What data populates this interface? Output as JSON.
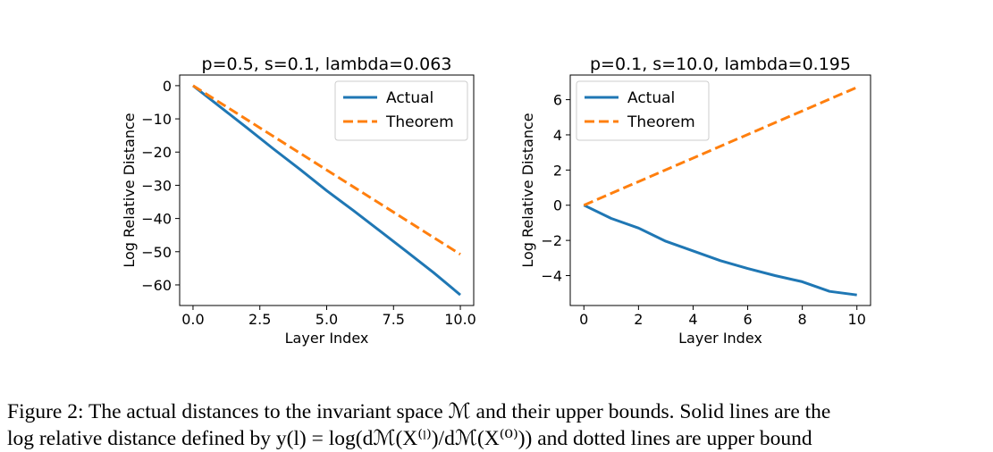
{
  "chart_data": [
    {
      "type": "line",
      "title": "p=0.5, s=0.1, lambda=0.063",
      "xlabel": "Layer Index",
      "ylabel": "Log Relative Distance",
      "xlim": [
        -0.5,
        10.5
      ],
      "ylim": [
        -66.2,
        3.2
      ],
      "xticks": [
        0.0,
        2.5,
        5.0,
        7.5,
        10.0
      ],
      "xtick_labels": [
        "0.0",
        "2.5",
        "5.0",
        "7.5",
        "10.0"
      ],
      "yticks": [
        0,
        -10,
        -20,
        -30,
        -40,
        -50,
        -60
      ],
      "ytick_labels": [
        "0",
        "−10",
        "−20",
        "−30",
        "−40",
        "−50",
        "−60"
      ],
      "grid": false,
      "legend": "upper right",
      "series": [
        {
          "name": "Actual",
          "color": "#1f77b4",
          "style": "solid",
          "x": [
            0,
            1,
            2,
            3,
            4,
            5,
            6,
            7,
            8,
            9,
            10
          ],
          "y": [
            0,
            -6.3,
            -12.6,
            -19.0,
            -25.2,
            -31.6,
            -37.6,
            -43.8,
            -50.0,
            -56.3,
            -63.0
          ]
        },
        {
          "name": "Theorem",
          "color": "#ff7f0e",
          "style": "dashed",
          "x": [
            0,
            10
          ],
          "y": [
            0,
            -50.8
          ]
        }
      ]
    },
    {
      "type": "line",
      "title": "p=0.1, s=10.0, lambda=0.195",
      "xlabel": "Layer Index",
      "ylabel": "Log Relative Distance",
      "xlim": [
        -0.5,
        10.5
      ],
      "ylim": [
        -5.7,
        7.4
      ],
      "xticks": [
        0,
        2,
        4,
        6,
        8,
        10
      ],
      "xtick_labels": [
        "0",
        "2",
        "4",
        "6",
        "8",
        "10"
      ],
      "yticks": [
        6,
        4,
        2,
        0,
        -2,
        -4
      ],
      "ytick_labels": [
        "6",
        "4",
        "2",
        "0",
        "−2",
        "−4"
      ],
      "grid": false,
      "legend": "upper left",
      "series": [
        {
          "name": "Actual",
          "color": "#1f77b4",
          "style": "solid",
          "x": [
            0,
            1,
            2,
            3,
            4,
            5,
            6,
            7,
            8,
            9,
            10
          ],
          "y": [
            0,
            -0.75,
            -1.3,
            -2.05,
            -2.6,
            -3.15,
            -3.6,
            -4.0,
            -4.35,
            -4.9,
            -5.1
          ]
        },
        {
          "name": "Theorem",
          "color": "#ff7f0e",
          "style": "dashed",
          "x": [
            0,
            10
          ],
          "y": [
            0,
            6.7
          ]
        }
      ]
    }
  ],
  "caption": {
    "line1": "Figure 2: The actual distances to the invariant space ℳ and their upper bounds. Solid lines are the",
    "line2": "log relative distance defined by y(l) = log(dℳ(X⁽ˡ⁾)/dℳ(X⁽⁰⁾)) and dotted lines are upper bound"
  }
}
